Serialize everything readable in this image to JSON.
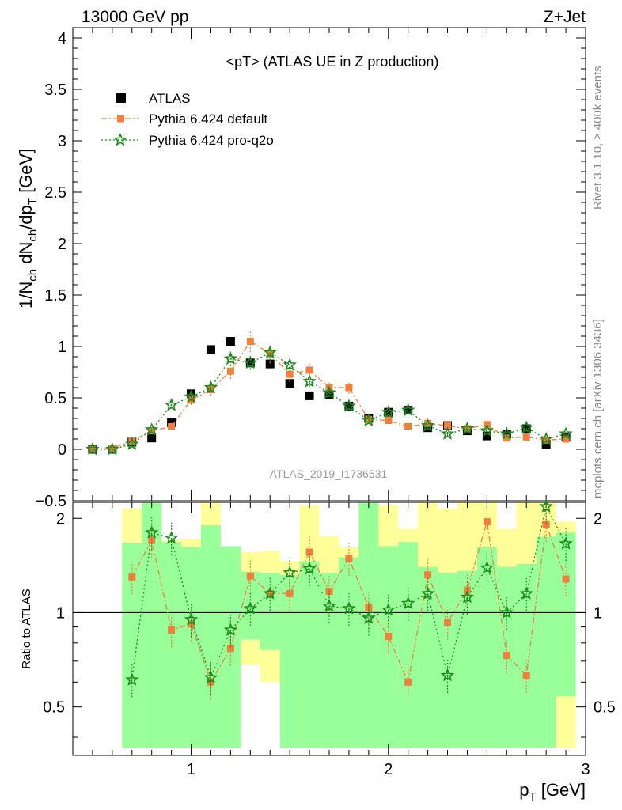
{
  "header": {
    "left": "13000 GeV pp",
    "right": "Z+Jet"
  },
  "side_text": {
    "top": "Rivet 3.1.10, ≥ 400k events",
    "bottom": "mcplots.cern.ch [arXiv:1306.3436]"
  },
  "chart_data": [
    {
      "type": "scatter",
      "title": "<pT> (ATLAS UE in Z production)",
      "watermark": "ATLAS_2019_I1736531",
      "ylabel": "1/N_ch dN_ch/dp_T [GeV]",
      "xlabel": "p_T [GeV]",
      "xlim": [
        0.4,
        3.0
      ],
      "ylim": [
        -0.5,
        4.1
      ],
      "yticks": [
        "−0.5",
        "0",
        "0.5",
        "1",
        "1.5",
        "2",
        "2.5",
        "3",
        "3.5",
        "4"
      ],
      "legend_position": "top-left",
      "x": [
        0.5,
        0.6,
        0.7,
        0.8,
        0.9,
        1.0,
        1.1,
        1.2,
        1.3,
        1.4,
        1.5,
        1.6,
        1.7,
        1.8,
        1.9,
        2.0,
        2.1,
        2.2,
        2.3,
        2.4,
        2.5,
        2.6,
        2.7,
        2.8,
        2.9
      ],
      "series": [
        {
          "name": "ATLAS",
          "color": "#000000",
          "marker": "square",
          "values": [
            0.0,
            0.0,
            0.07,
            0.11,
            0.26,
            0.54,
            0.97,
            1.05,
            0.84,
            0.83,
            0.64,
            0.52,
            0.53,
            0.42,
            0.3,
            0.36,
            0.38,
            0.21,
            0.23,
            0.18,
            0.13,
            0.15,
            0.2,
            0.05,
            0.12
          ]
        },
        {
          "name": "Pythia 6.424 default",
          "color": "#f07f3c",
          "marker": "filled-square",
          "values": [
            0.0,
            0.01,
            0.08,
            0.18,
            0.22,
            0.48,
            0.58,
            0.76,
            1.05,
            0.93,
            0.73,
            0.77,
            0.6,
            0.6,
            0.29,
            0.28,
            0.22,
            0.25,
            0.23,
            0.2,
            0.24,
            0.11,
            0.12,
            0.09,
            0.1
          ]
        },
        {
          "name": "Pythia 6.424 pro-q2o",
          "color": "#1a8a1a",
          "marker": "star",
          "values": [
            0.0,
            0.0,
            0.05,
            0.19,
            0.43,
            0.51,
            0.6,
            0.88,
            0.84,
            0.94,
            0.82,
            0.66,
            0.55,
            0.42,
            0.28,
            0.36,
            0.38,
            0.23,
            0.15,
            0.2,
            0.18,
            0.15,
            0.21,
            0.1,
            0.15
          ]
        }
      ]
    },
    {
      "type": "scatter",
      "ylabel": "Ratio to ATLAS",
      "xlabel": "p_T [GeV]",
      "xlim": [
        0.4,
        3.0
      ],
      "ylim": [
        0.35,
        2.25
      ],
      "xticks": [
        "1",
        "2",
        "3"
      ],
      "yticks": [
        "0.5",
        "1",
        "2"
      ],
      "x": [
        0.7,
        0.8,
        0.9,
        1.0,
        1.1,
        1.2,
        1.3,
        1.4,
        1.5,
        1.6,
        1.7,
        1.8,
        1.9,
        2.0,
        2.1,
        2.2,
        2.3,
        2.4,
        2.5,
        2.6,
        2.7,
        2.8,
        2.9
      ],
      "bands_1sigma": [
        [
          0.37,
          1.67
        ],
        [
          0.37,
          2.3
        ],
        [
          0.37,
          1.68
        ],
        [
          0.37,
          1.62
        ],
        [
          0.37,
          1.9
        ],
        [
          0.37,
          1.63
        ],
        [
          0.82,
          1.35
        ],
        [
          0.76,
          1.34
        ],
        [
          0.37,
          1.32
        ],
        [
          0.37,
          1.46
        ],
        [
          0.37,
          1.34
        ],
        [
          0.37,
          1.5
        ],
        [
          0.37,
          2.25
        ],
        [
          0.37,
          1.63
        ],
        [
          0.37,
          1.68
        ],
        [
          0.37,
          1.4
        ],
        [
          0.37,
          1.34
        ],
        [
          0.37,
          1.36
        ],
        [
          0.37,
          1.62
        ],
        [
          0.37,
          1.4
        ],
        [
          0.37,
          1.43
        ],
        [
          0.37,
          1.75
        ],
        [
          0.54,
          1.8
        ]
      ],
      "bands_2sigma": [
        [
          0.37,
          2.15
        ],
        [
          0.37,
          2.3
        ],
        [
          0.72,
          1.7
        ],
        [
          0.7,
          1.72
        ],
        [
          0.37,
          2.3
        ],
        [
          0.37,
          1.48
        ],
        [
          0.68,
          1.56
        ],
        [
          0.6,
          1.58
        ],
        [
          0.64,
          1.46
        ],
        [
          0.37,
          2.2
        ],
        [
          0.37,
          1.75
        ],
        [
          0.37,
          1.62
        ],
        [
          0.37,
          2.3
        ],
        [
          0.37,
          2.2
        ],
        [
          0.37,
          1.85
        ],
        [
          0.37,
          2.3
        ],
        [
          0.37,
          2.15
        ],
        [
          0.37,
          2.3
        ],
        [
          0.37,
          2.3
        ],
        [
          0.37,
          1.85
        ],
        [
          0.37,
          2.3
        ],
        [
          0.37,
          2.3
        ],
        [
          0.37,
          1.95
        ]
      ],
      "series": [
        {
          "name": "Pythia 6.424 default",
          "color": "#f07f3c",
          "values": [
            1.3,
            1.7,
            0.88,
            0.92,
            0.6,
            0.77,
            1.31,
            1.15,
            1.15,
            1.56,
            1.17,
            1.49,
            1.04,
            0.84,
            0.6,
            1.32,
            0.93,
            1.18,
            1.95,
            0.73,
            0.63,
            1.91,
            1.28
          ]
        },
        {
          "name": "Pythia 6.424 pro-q2o",
          "color": "#1a8a1a",
          "values": [
            0.61,
            1.8,
            1.73,
            0.95,
            0.62,
            0.88,
            1.03,
            1.15,
            1.34,
            1.38,
            1.05,
            1.03,
            0.96,
            1.02,
            1.07,
            1.15,
            0.63,
            1.12,
            1.39,
            1.0,
            1.15,
            2.18,
            1.66
          ]
        }
      ]
    }
  ]
}
